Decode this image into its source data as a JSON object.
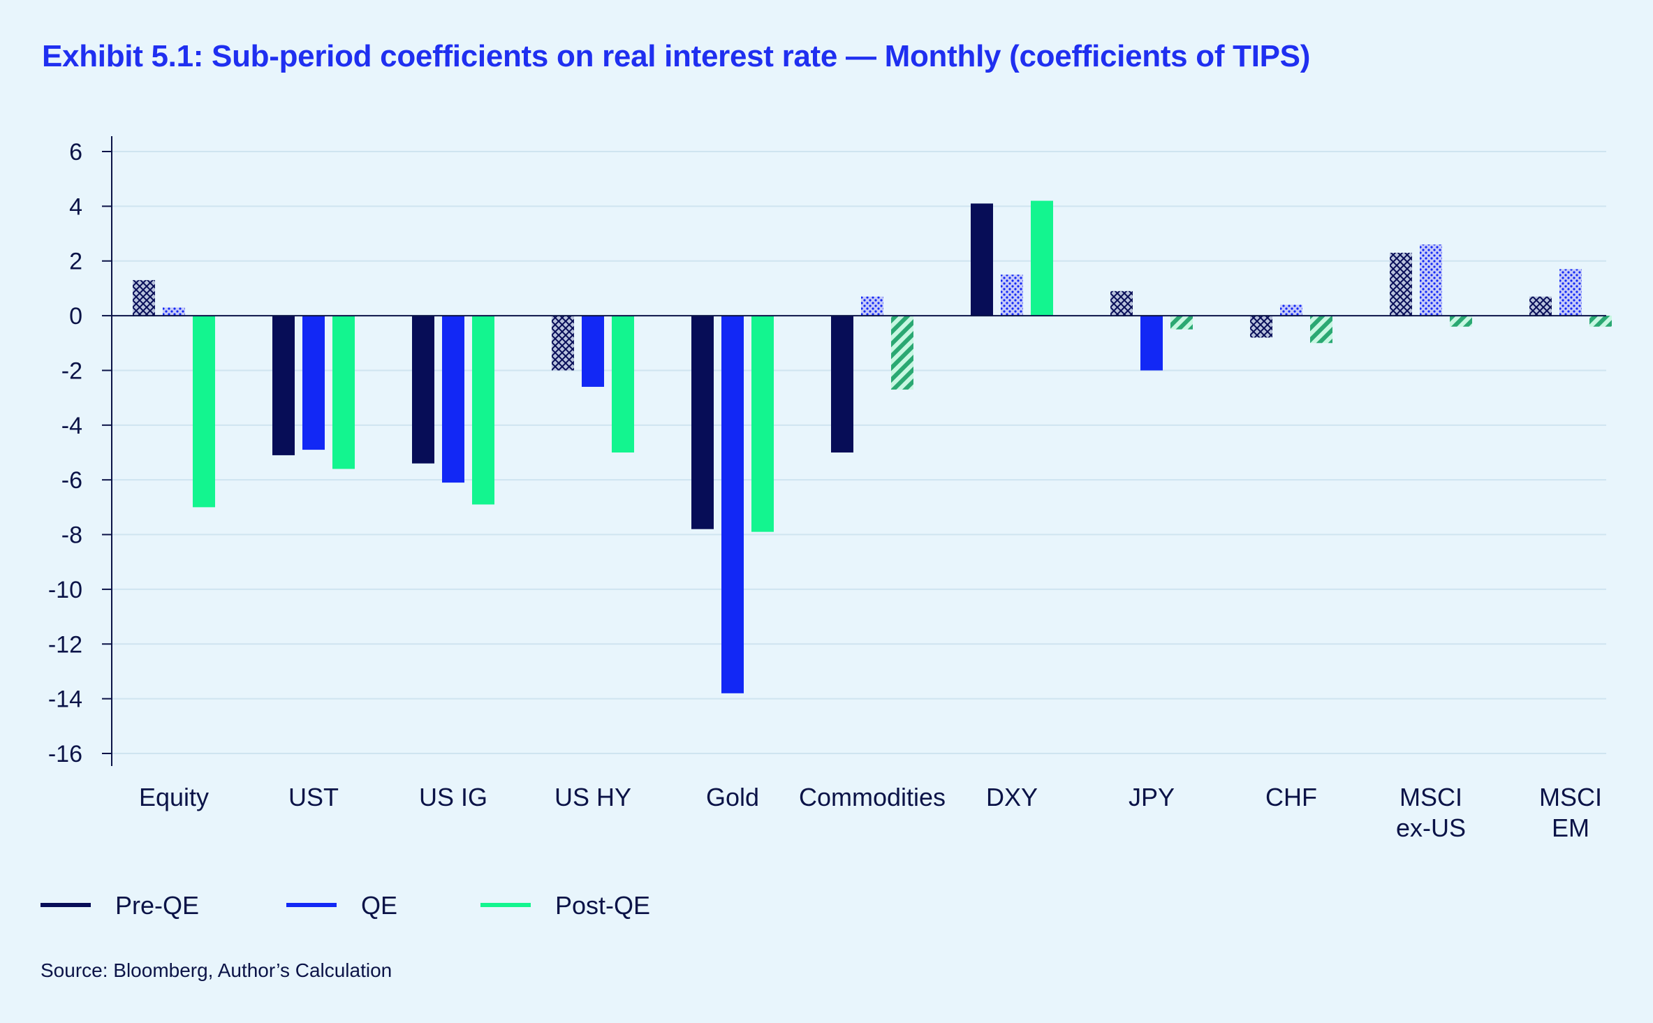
{
  "title": "Exhibit 5.1: Sub-period coefficients on real interest rate — Monthly (coefficients of TIPS)",
  "source": "Source: Bloomberg, Author’s Calculation",
  "colors": {
    "background": "#e8f5fc",
    "title": "#1f2ff0",
    "text": "#0b1347",
    "grid": "#cfe4f0",
    "axis": "#0b1347",
    "pre_qe": "#070d57",
    "qe": "#1228f5",
    "post_qe": "#13f58f",
    "post_qe_hatch": "#2aa872"
  },
  "chart_data": {
    "type": "bar",
    "categories": [
      [
        "Equity"
      ],
      [
        "UST"
      ],
      [
        "US IG"
      ],
      [
        "US HY"
      ],
      [
        "Gold"
      ],
      [
        "Commodities"
      ],
      [
        "DXY"
      ],
      [
        "JPY"
      ],
      [
        "CHF"
      ],
      [
        "MSCI",
        "ex-US"
      ],
      [
        "MSCI",
        "EM"
      ]
    ],
    "series": [
      {
        "name": "Pre-QE",
        "values": [
          1.3,
          -5.1,
          -5.4,
          -2.0,
          -7.8,
          -5.0,
          4.1,
          0.9,
          -0.8,
          2.3,
          0.7
        ],
        "significant": [
          false,
          true,
          true,
          false,
          true,
          true,
          true,
          false,
          false,
          false,
          false
        ]
      },
      {
        "name": "QE",
        "values": [
          0.3,
          -4.9,
          -6.1,
          -2.6,
          -13.8,
          0.7,
          1.5,
          -2.0,
          0.4,
          2.6,
          1.7
        ],
        "significant": [
          false,
          true,
          true,
          true,
          true,
          false,
          false,
          true,
          false,
          false,
          false
        ]
      },
      {
        "name": "Post-QE",
        "values": [
          -7.0,
          -5.6,
          -6.9,
          -5.0,
          -7.9,
          -2.7,
          4.2,
          -0.5,
          -1.0,
          -0.4,
          -0.4
        ],
        "significant": [
          true,
          true,
          true,
          true,
          true,
          false,
          true,
          false,
          false,
          false,
          false
        ]
      }
    ],
    "y_ticks": [
      6,
      4,
      2,
      0,
      -2,
      -4,
      -6,
      -8,
      -10,
      -12,
      -14,
      -16
    ],
    "ylim": [
      -16.5,
      6.5
    ],
    "grid": true,
    "legend_position": "bottom-left",
    "note": "solid fill = significant; patterned fill (crosshatch, dots, diagonal hatch) = not significant"
  }
}
